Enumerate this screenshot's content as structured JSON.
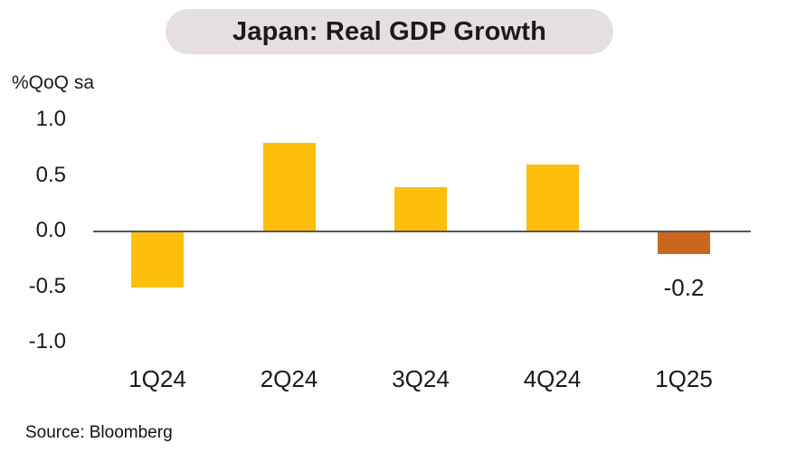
{
  "title": "Japan: Real GDP Growth",
  "y_axis_unit": "%QoQ sa",
  "source": "Source: Bloomberg",
  "colors": {
    "bar_default": "#FDBF0C",
    "bar_highlight": "#C9681D",
    "title_pill_bg": "#E6DFDF",
    "axis_line": "#54565A",
    "text": "#1A1A1A"
  },
  "chart_data": {
    "type": "bar",
    "title": "Japan: Real GDP Growth",
    "xlabel": "",
    "ylabel": "%QoQ sa",
    "categories": [
      "1Q24",
      "2Q24",
      "3Q24",
      "4Q24",
      "1Q25"
    ],
    "values": [
      -0.5,
      0.8,
      0.4,
      0.6,
      -0.2
    ],
    "bar_colors": [
      "#FDBF0C",
      "#FDBF0C",
      "#FDBF0C",
      "#FDBF0C",
      "#C9681D"
    ],
    "data_labels": [
      null,
      null,
      null,
      null,
      "-0.2"
    ],
    "yticks": [
      {
        "label": "1.0",
        "value": 1.0
      },
      {
        "label": "0.5",
        "value": 0.5
      },
      {
        "label": "0.0",
        "value": 0.0
      },
      {
        "label": "-0.5",
        "value": -0.5
      },
      {
        "label": "-1.0",
        "value": -1.0
      }
    ],
    "ylim": [
      -1.0,
      1.0
    ],
    "grid": false,
    "legend": null
  }
}
